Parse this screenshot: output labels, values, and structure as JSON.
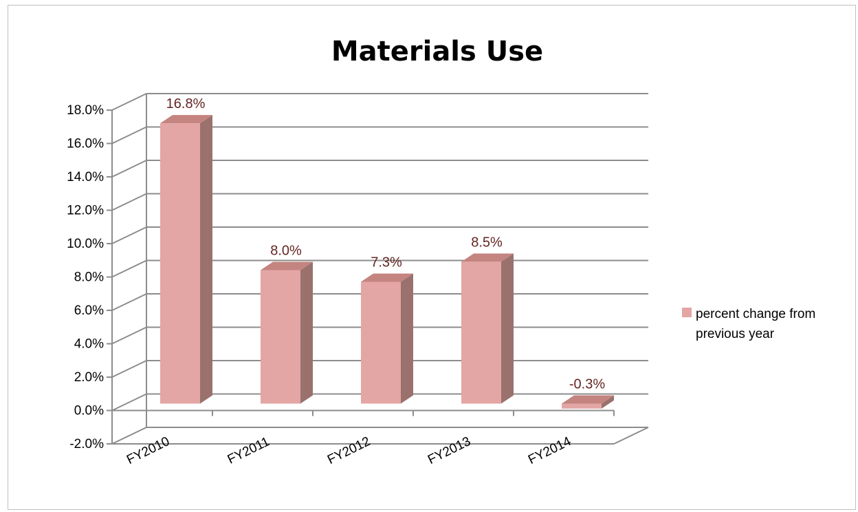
{
  "chart_data": {
    "type": "bar",
    "title": "Materials Use",
    "categories": [
      "FY2010",
      "FY2011",
      "FY2012",
      "FY2013",
      "FY2014"
    ],
    "series": [
      {
        "name": "percent change from previous year",
        "values": [
          16.8,
          8.0,
          7.3,
          8.5,
          -0.3
        ]
      }
    ],
    "data_labels": [
      "16.8%",
      "8.0%",
      "7.3%",
      "8.5%",
      "-0.3%"
    ],
    "y_ticks": [
      "-2.0%",
      "0.0%",
      "2.0%",
      "4.0%",
      "6.0%",
      "8.0%",
      "10.0%",
      "12.0%",
      "14.0%",
      "16.0%",
      "18.0%"
    ],
    "ylim": [
      -2,
      18
    ],
    "grid": true,
    "legend_position": "right",
    "legend_lines": [
      "percent change from",
      "previous year"
    ],
    "colors": {
      "bar_front": "#e3a6a4",
      "bar_side": "#9a716d",
      "bar_top": "#c48480",
      "label": "#632523",
      "grid": "#8c8c8c"
    }
  }
}
